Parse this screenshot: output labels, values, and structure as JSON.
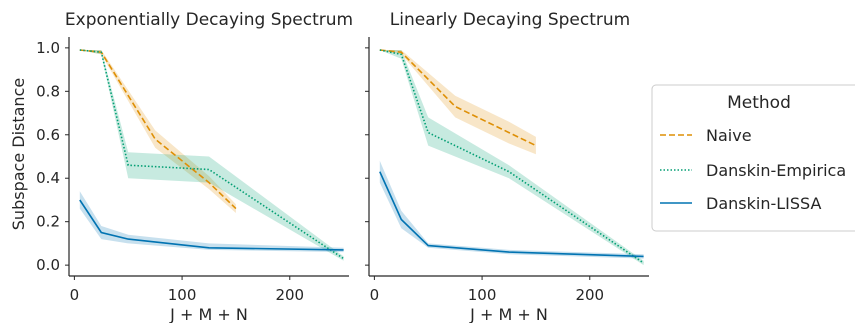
{
  "colors": {
    "naive": "#de8f05",
    "danskin_empirical": "#029e73",
    "danskin_lissa": "#0173b2"
  },
  "legend": {
    "title": "Method",
    "entries": [
      {
        "label": "Naive",
        "color": "#de8f05",
        "dash": "dashed"
      },
      {
        "label": "Danskin-Empirica",
        "color": "#029e73",
        "dash": "dotted"
      },
      {
        "label": "Danskin-LISSA",
        "color": "#0173b2",
        "dash": "solid"
      }
    ]
  },
  "chart_data": [
    {
      "type": "line",
      "title": "Exponentially Decaying Spectrum",
      "xlabel": "J + M + N",
      "ylabel": "Subspace Distance",
      "xlim": [
        -5,
        255
      ],
      "ylim": [
        -0.05,
        1.05
      ],
      "xticks": [
        0,
        100,
        200
      ],
      "yticks": [
        0.0,
        0.2,
        0.4,
        0.6,
        0.8,
        1.0
      ],
      "ytick_labels": [
        "0.0",
        "0.2",
        "0.4",
        "0.6",
        "0.8",
        "1.0"
      ],
      "grid": false,
      "series": [
        {
          "name": "Naive",
          "x": [
            5,
            25,
            75,
            125,
            150
          ],
          "y": [
            0.99,
            0.98,
            0.58,
            0.38,
            0.26
          ],
          "lower": [
            0.99,
            0.97,
            0.54,
            0.35,
            0.24
          ],
          "upper": [
            0.99,
            0.99,
            0.62,
            0.41,
            0.28
          ]
        },
        {
          "name": "Danskin-Empirica",
          "x": [
            5,
            25,
            50,
            125,
            250
          ],
          "y": [
            0.99,
            0.98,
            0.46,
            0.44,
            0.03
          ],
          "lower": [
            0.99,
            0.97,
            0.4,
            0.38,
            0.02
          ],
          "upper": [
            0.99,
            0.99,
            0.52,
            0.5,
            0.04
          ]
        },
        {
          "name": "Danskin-LISSA",
          "x": [
            5,
            25,
            50,
            125,
            250
          ],
          "y": [
            0.3,
            0.15,
            0.12,
            0.08,
            0.07
          ],
          "lower": [
            0.26,
            0.12,
            0.1,
            0.07,
            0.06
          ],
          "upper": [
            0.34,
            0.18,
            0.14,
            0.1,
            0.08
          ]
        }
      ]
    },
    {
      "type": "line",
      "title": "Linearly Decaying Spectrum",
      "xlabel": "J + M + N",
      "ylabel": "",
      "xlim": [
        -5,
        255
      ],
      "ylim": [
        -0.05,
        1.05
      ],
      "xticks": [
        0,
        100,
        200
      ],
      "yticks": [
        0.0,
        0.2,
        0.4,
        0.6,
        0.8,
        1.0
      ],
      "ytick_labels": [],
      "grid": false,
      "series": [
        {
          "name": "Naive",
          "x": [
            5,
            25,
            75,
            125,
            150
          ],
          "y": [
            0.99,
            0.98,
            0.73,
            0.61,
            0.55
          ],
          "lower": [
            0.99,
            0.97,
            0.68,
            0.56,
            0.51
          ],
          "upper": [
            0.99,
            0.99,
            0.78,
            0.66,
            0.59
          ]
        },
        {
          "name": "Danskin-Empirica",
          "x": [
            5,
            25,
            50,
            125,
            250
          ],
          "y": [
            0.99,
            0.97,
            0.61,
            0.43,
            0.01
          ],
          "lower": [
            0.99,
            0.95,
            0.55,
            0.4,
            0.0
          ],
          "upper": [
            0.99,
            0.99,
            0.68,
            0.46,
            0.02
          ]
        },
        {
          "name": "Danskin-LISSA",
          "x": [
            5,
            25,
            50,
            125,
            250
          ],
          "y": [
            0.43,
            0.21,
            0.09,
            0.06,
            0.04
          ],
          "lower": [
            0.38,
            0.17,
            0.08,
            0.05,
            0.03
          ],
          "upper": [
            0.48,
            0.25,
            0.1,
            0.07,
            0.05
          ]
        }
      ]
    }
  ]
}
